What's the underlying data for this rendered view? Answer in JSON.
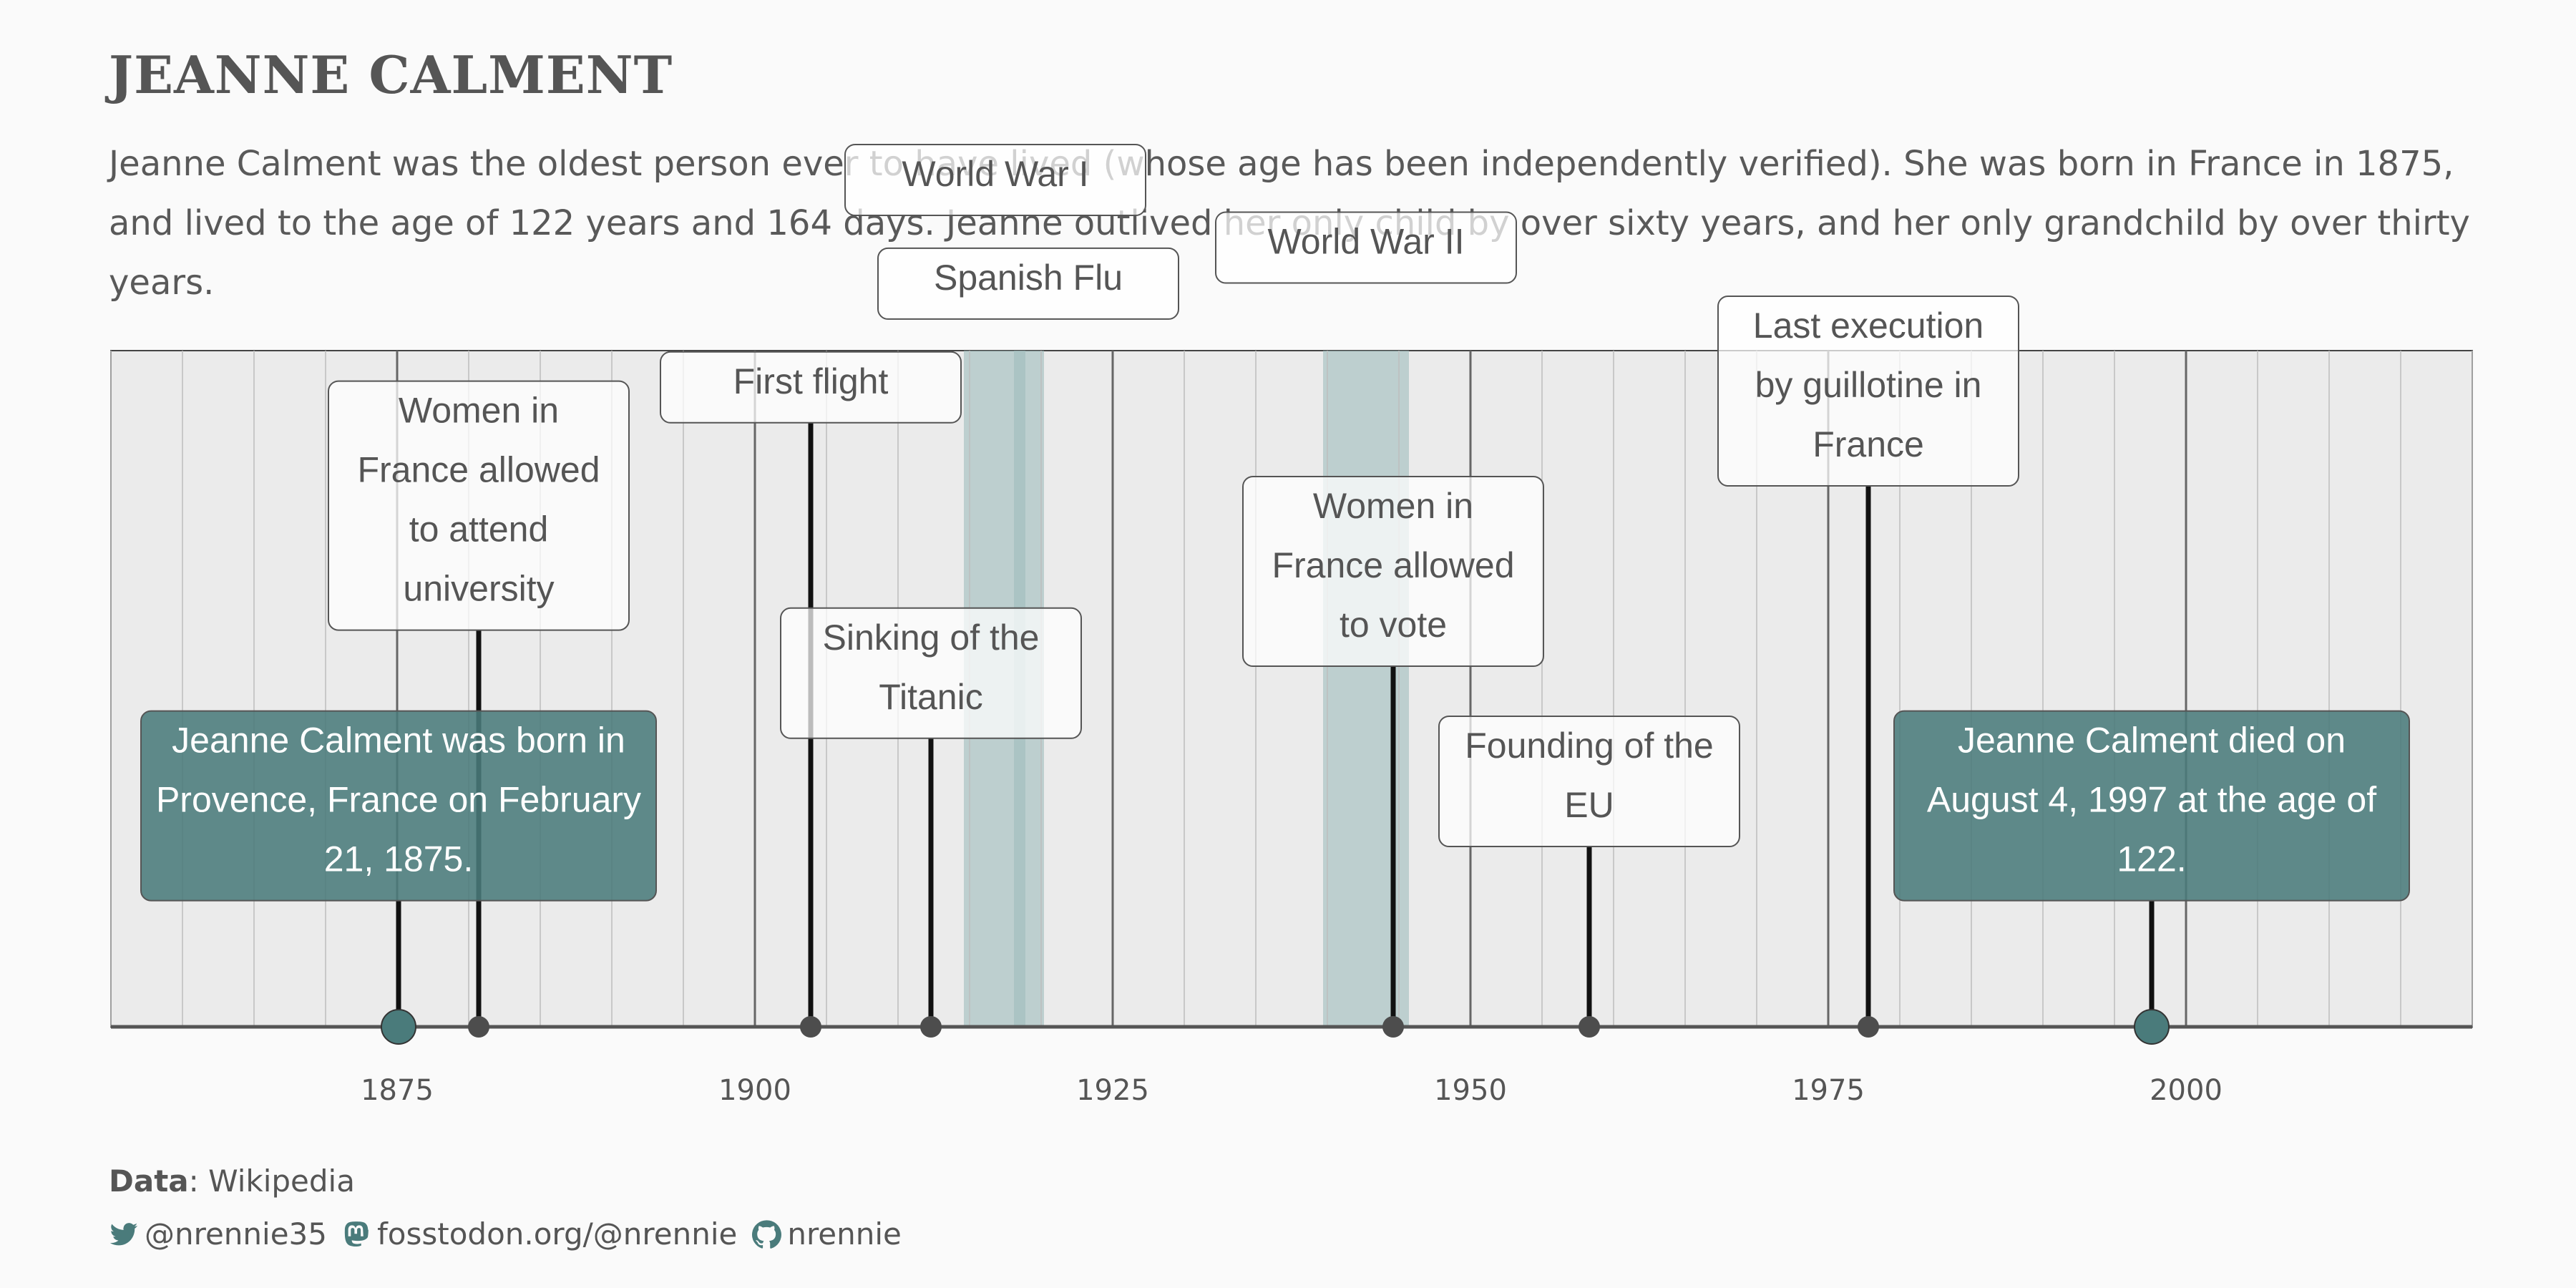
{
  "header": {
    "title": "JEANNE CALMENT",
    "subtitle": "Jeanne Calment was the oldest person ever to have lived (whose age has been independently verified). She was born in France in 1875, and lived to the age of 122 years and 164 days. Jeanne outlived her only child by over sixty years, and her only grandchild by over thirty years."
  },
  "chart_data": {
    "type": "timeline",
    "title": "",
    "xlabel": "",
    "ylabel": "",
    "xlim": [
      1855,
      2020
    ],
    "x_ticks": [
      1875,
      1900,
      1925,
      1950,
      1975,
      2000
    ],
    "grid": true,
    "shaded_periods": [
      {
        "name": "World War I",
        "start": 1914.6,
        "end": 1918.9
      },
      {
        "name": "Spanish Flu",
        "start": 1918.1,
        "end": 1920.2
      },
      {
        "name": "World War II",
        "start": 1939.7,
        "end": 1945.7
      }
    ],
    "period_labels": [
      {
        "text": "World War I",
        "year": 1916.8,
        "level": 9.0
      },
      {
        "text": "Spanish Flu",
        "year": 1919.1,
        "level": 7.85
      },
      {
        "text": "World War II",
        "year": 1942.7,
        "level": 8.25
      }
    ],
    "events": [
      {
        "year": 1875.1,
        "label": "Jeanne Calment was born in Provence, France on February 21, 1875.",
        "level": 1.4,
        "highlight": true
      },
      {
        "year": 1880.7,
        "label": "Women in France allowed to attend university",
        "level": 4.4,
        "highlight": false
      },
      {
        "year": 1903.9,
        "label": "First flight",
        "level": 6.7,
        "highlight": false
      },
      {
        "year": 1912.3,
        "label": "Sinking of the Titanic",
        "level": 3.2,
        "highlight": false
      },
      {
        "year": 1944.6,
        "label": "Women in France allowed to vote",
        "level": 4.0,
        "highlight": false
      },
      {
        "year": 1958.3,
        "label": "Founding of the EU",
        "level": 2.0,
        "highlight": false
      },
      {
        "year": 1977.8,
        "label": "Last execution by guillotine in France",
        "level": 6.0,
        "highlight": false
      },
      {
        "year": 1997.6,
        "label": "Jeanne Calment died on August 4, 1997 at the age of 122.",
        "level": 1.4,
        "highlight": true
      }
    ],
    "colors": {
      "panel": "#ebebeb",
      "gridline": "#bdbdbd",
      "major_gridline": "#666666",
      "axis_line": "#555555",
      "stem": "#111111",
      "dot": "#4d4d4d",
      "highlight": "#4a7b7b",
      "shade": "#9fbcbc"
    }
  },
  "footer": {
    "data_label": "Data",
    "data_source": ": Wikipedia",
    "twitter": "@nrennie35",
    "mastodon": "fosstodon.org/@nrennie",
    "github": "nrennie",
    "twitter_icon": "twitter-bird-icon",
    "mastodon_icon": "mastodon-icon",
    "github_icon": "github-octocat-icon"
  }
}
